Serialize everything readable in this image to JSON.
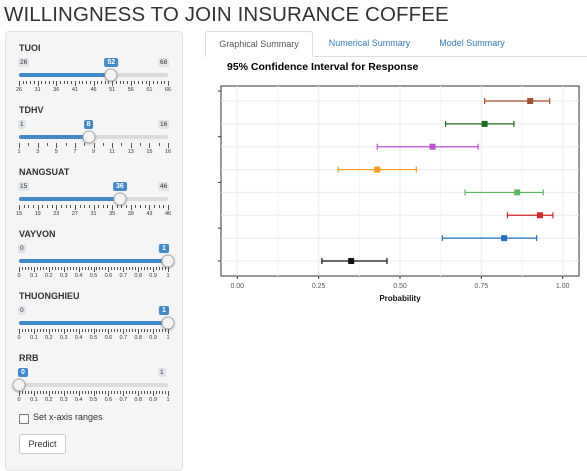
{
  "app_title": "WILLINGNESS TO JOIN INSURANCE COFFEE",
  "sliders": [
    {
      "id": "tuoi",
      "label": "TUOI",
      "min": 26,
      "max": 68,
      "value": 52,
      "min_label": "26",
      "max_label": "68",
      "value_label": "52",
      "tick_labels": [
        "26",
        "31",
        "36",
        "41",
        "46",
        "51",
        "56",
        "61",
        "66"
      ],
      "minor_per_major": 4
    },
    {
      "id": "tdhv",
      "label": "TDHV",
      "min": 1,
      "max": 16,
      "value": 8,
      "min_label": "1",
      "max_label": "16",
      "value_label": "8",
      "tick_labels": [
        "1",
        "3",
        "5",
        "7",
        "9",
        "11",
        "13",
        "15",
        "16"
      ],
      "minor_per_major": 1
    },
    {
      "id": "nangsuat",
      "label": "NANGSUAT",
      "min": 15,
      "max": 46,
      "value": 36,
      "min_label": "15",
      "max_label": "46",
      "value_label": "36",
      "tick_labels": [
        "15",
        "19",
        "23",
        "27",
        "31",
        "35",
        "39",
        "43",
        "46"
      ],
      "minor_per_major": 3
    },
    {
      "id": "vayvon",
      "label": "VAYVON",
      "min": 0,
      "max": 1,
      "value": 1,
      "min_label": "0",
      "max_label": "1",
      "value_label": "1",
      "tick_labels": [
        "0",
        "0.1",
        "0.2",
        "0.3",
        "0.4",
        "0.5",
        "0.6",
        "0.7",
        "0.8",
        "0.9",
        "1"
      ],
      "minor_per_major": 4
    },
    {
      "id": "thuonghieu",
      "label": "THUONGHIEU",
      "min": 0,
      "max": 1,
      "value": 1,
      "min_label": "0",
      "max_label": "1",
      "value_label": "1",
      "tick_labels": [
        "0",
        "0.1",
        "0.2",
        "0.3",
        "0.4",
        "0.5",
        "0.6",
        "0.7",
        "0.8",
        "0.9",
        "1"
      ],
      "minor_per_major": 4
    },
    {
      "id": "rrb",
      "label": "RRB",
      "min": 0,
      "max": 1,
      "value": 0,
      "min_label": "0",
      "max_label": "1",
      "value_label": "0",
      "tick_labels": [
        "0",
        "0.1",
        "0.2",
        "0.3",
        "0.4",
        "0.5",
        "0.6",
        "0.7",
        "0.8",
        "0.9",
        "1"
      ],
      "minor_per_major": 4
    }
  ],
  "checkbox": {
    "label": "Set x-axis ranges",
    "checked": false
  },
  "predict_button": "Predict",
  "tabs": [
    {
      "label": "Graphical Summary",
      "active": true
    },
    {
      "label": "Numerical Summary",
      "active": false
    },
    {
      "label": "Model Summary",
      "active": false
    }
  ],
  "chart_data": {
    "type": "scatter",
    "title": "95% Confidence Interval for Response",
    "xlabel": "Probability",
    "ylabel": "",
    "xlim": [
      -0.05,
      1.05
    ],
    "x_ticks": [
      "0.00",
      "0.25",
      "0.50",
      "0.75",
      "1.00"
    ],
    "grid": true,
    "series": [
      {
        "estimate": 0.9,
        "lower": 0.76,
        "upper": 0.96,
        "color": "#a0522d"
      },
      {
        "estimate": 0.76,
        "lower": 0.64,
        "upper": 0.85,
        "color": "#1b6e1b"
      },
      {
        "estimate": 0.6,
        "lower": 0.43,
        "upper": 0.74,
        "color": "#bb55cc"
      },
      {
        "estimate": 0.43,
        "lower": 0.31,
        "upper": 0.55,
        "color": "#f39c1f"
      },
      {
        "estimate": 0.86,
        "lower": 0.7,
        "upper": 0.94,
        "color": "#5cb85c"
      },
      {
        "estimate": 0.93,
        "lower": 0.83,
        "upper": 0.97,
        "color": "#d62728"
      },
      {
        "estimate": 0.82,
        "lower": 0.63,
        "upper": 0.92,
        "color": "#1f6fc5"
      },
      {
        "estimate": 0.35,
        "lower": 0.26,
        "upper": 0.46,
        "color": "#111111"
      }
    ]
  }
}
